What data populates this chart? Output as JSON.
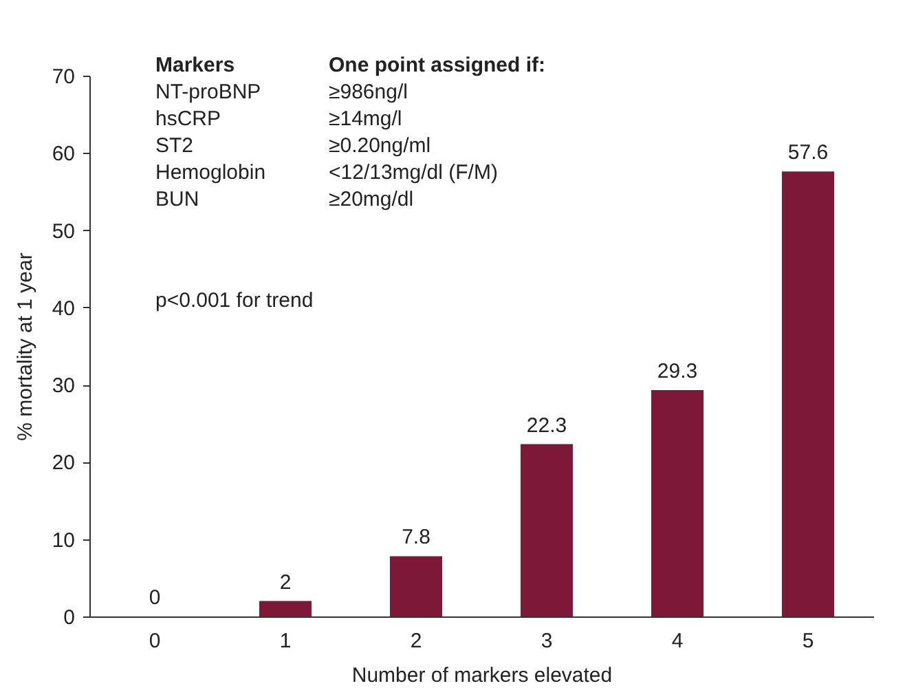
{
  "chart_data": {
    "type": "bar",
    "xlabel": "Number of markers elevated",
    "ylabel": "% mortality at 1 year",
    "categories": [
      "0",
      "1",
      "2",
      "3",
      "4",
      "5"
    ],
    "values": [
      0,
      2,
      7.8,
      22.3,
      29.3,
      57.6
    ],
    "color": "#7d1838",
    "data_labels": true,
    "grid": false,
    "ylim": [
      0,
      70
    ],
    "yticks": [
      0,
      10,
      20,
      30,
      40,
      50,
      60,
      70
    ],
    "annotations": [
      "Markers",
      "One point assigned if:",
      "NT-proBNP",
      "≥986ng/l",
      "hsCRP",
      "≥14mg/l",
      "ST2",
      "≥0.20ng/ml",
      "Hemoglobin",
      "<12/13mg/dl (F/M)",
      "BUN",
      "≥20mg/dl",
      "p<0.001 for trend"
    ]
  }
}
